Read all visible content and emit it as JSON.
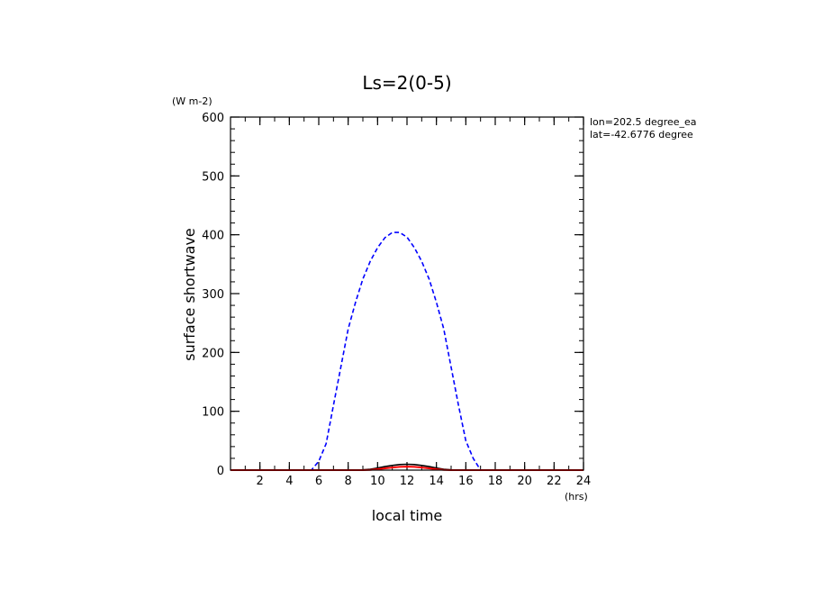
{
  "chart_data": {
    "type": "line",
    "title": "Ls=2(0-5)",
    "xlabel": "local time",
    "xunit": "(hrs)",
    "ylabel": "surface shortwave",
    "yunit": "(W m-2)",
    "xlim": [
      0,
      24
    ],
    "ylim": [
      0,
      600
    ],
    "xticks": [
      2,
      4,
      6,
      8,
      10,
      12,
      14,
      16,
      18,
      20,
      22,
      24
    ],
    "yticks": [
      0,
      100,
      200,
      300,
      400,
      500,
      600
    ],
    "annotations": [
      "lon=202.5 degree_ea",
      "lat=-42.6776 degree"
    ],
    "series": [
      {
        "color": "#0000ff",
        "dash": "dashed",
        "x": [
          0,
          1,
          2,
          3,
          4,
          5,
          5.5,
          6,
          6.5,
          7,
          7.5,
          8,
          8.5,
          9,
          9.5,
          10,
          10.5,
          11,
          11.5,
          12,
          12.5,
          13,
          13.5,
          14,
          14.5,
          15,
          15.5,
          16,
          16.5,
          17,
          17.5,
          18,
          18.5,
          19,
          20,
          21,
          22,
          23,
          24
        ],
        "y": [
          0,
          0,
          0,
          0,
          0,
          0,
          0,
          15,
          45,
          110,
          175,
          240,
          285,
          325,
          355,
          378,
          395,
          404,
          404,
          396,
          378,
          355,
          325,
          285,
          240,
          175,
          110,
          50,
          20,
          0,
          0,
          0,
          0,
          0,
          0,
          0,
          0,
          0,
          0
        ]
      },
      {
        "color": "#000000",
        "dash": "solid",
        "x": [
          0,
          8,
          8.5,
          9,
          9.5,
          10,
          10.5,
          11,
          11.5,
          12,
          12.5,
          13,
          13.5,
          14,
          14.5,
          15,
          15.5,
          16,
          24
        ],
        "y": [
          0,
          0,
          0,
          0.5,
          1.5,
          3.5,
          6,
          8,
          9.5,
          10,
          9.5,
          8,
          6,
          3.5,
          1.5,
          0.5,
          0,
          0,
          0
        ]
      },
      {
        "color": "#ff0000",
        "dash": "solid",
        "x": [
          0,
          9,
          9.5,
          10,
          10.5,
          11,
          11.5,
          12,
          12.5,
          13,
          13.5,
          14,
          14.5,
          15,
          24
        ],
        "y": [
          0,
          0,
          0.5,
          1.5,
          3,
          4.5,
          5.5,
          6,
          5.5,
          4.5,
          3,
          1.5,
          0.5,
          0,
          0
        ]
      }
    ]
  }
}
